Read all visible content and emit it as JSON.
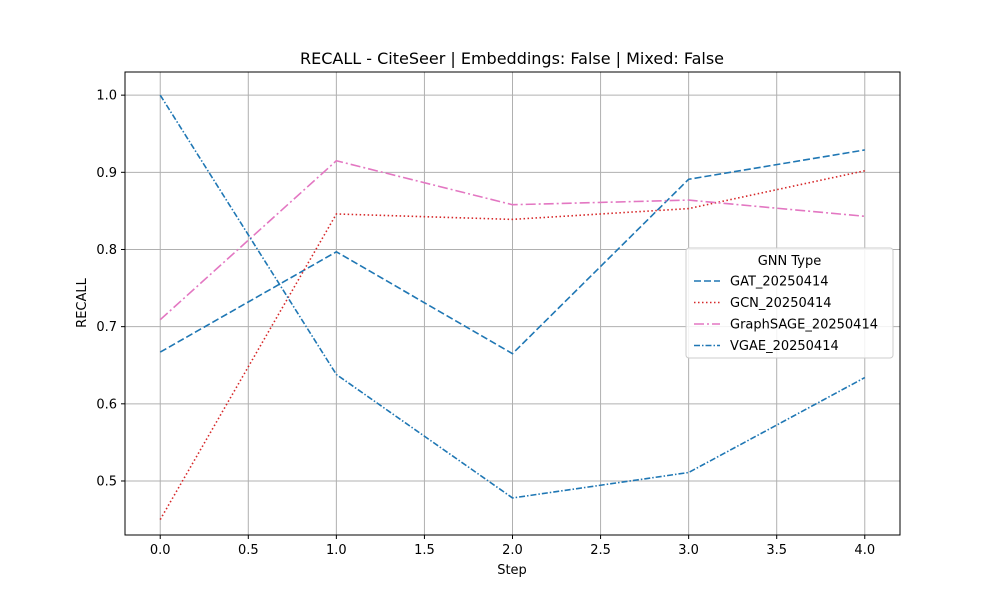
{
  "chart_data": {
    "type": "line",
    "title": "RECALL - CiteSeer | Embeddings: False | Mixed: False",
    "xlabel": "Step",
    "ylabel": "RECALL",
    "xlim": [
      -0.2,
      4.2
    ],
    "ylim": [
      0.43,
      1.03
    ],
    "x_ticks": [
      0.0,
      0.5,
      1.0,
      1.5,
      2.0,
      2.5,
      3.0,
      3.5,
      4.0
    ],
    "x_tick_labels": [
      "0.0",
      "0.5",
      "1.0",
      "1.5",
      "2.0",
      "2.5",
      "3.0",
      "3.5",
      "4.0"
    ],
    "y_ticks": [
      0.5,
      0.6,
      0.7,
      0.8,
      0.9,
      1.0
    ],
    "y_tick_labels": [
      "0.5",
      "0.6",
      "0.7",
      "0.8",
      "0.9",
      "1.0"
    ],
    "grid": true,
    "legend": {
      "title": "GNN Type",
      "placement": "center-right"
    },
    "x": [
      0,
      1,
      2,
      3,
      4
    ],
    "series": [
      {
        "name": "GAT_20250414",
        "color": "#1f77b4",
        "dash": "dashed",
        "values": [
          0.667,
          0.797,
          0.665,
          0.891,
          0.929
        ]
      },
      {
        "name": "GCN_20250414",
        "color": "#d62728",
        "dash": "dotted",
        "values": [
          0.45,
          0.846,
          0.839,
          0.853,
          0.902
        ]
      },
      {
        "name": "GraphSAGE_20250414",
        "color": "#e377c2",
        "dash": "dashdot",
        "values": [
          0.709,
          0.915,
          0.858,
          0.864,
          0.843
        ]
      },
      {
        "name": "VGAE_20250414",
        "color": "#1f77b4",
        "dash": "dashdot-tight",
        "values": [
          1.0,
          0.638,
          0.478,
          0.511,
          0.634
        ]
      }
    ]
  }
}
